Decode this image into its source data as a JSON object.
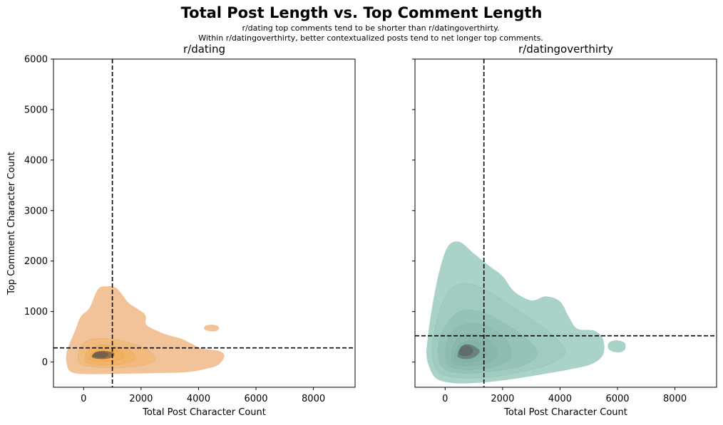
{
  "title": "Total Post Length vs. Top Comment Length",
  "subtitle_line1": "r/dating top comments tend to be shorter than r/datingoverthirty.",
  "subtitle_line2": "Within r/datingoverthirty, better contextualized posts tend to net longer top comments.",
  "colors": {
    "dating_light": "#f2c398",
    "dating_mid": "#f3a94a",
    "dating_dark": "#6b5a4a",
    "dot_light": "#a9d2c9",
    "dot_mid": "#7fb0a6",
    "dot_dark": "#5c6460",
    "reference_line": "#000000"
  },
  "chart_data": [
    {
      "type": "kde-contour",
      "title": "r/dating",
      "xlabel": "Total Post Character Count",
      "ylabel": "Top Comment Character Count",
      "xlim": [
        -1050,
        9450
      ],
      "ylim": [
        -500,
        6000
      ],
      "xticks": [
        0,
        2000,
        4000,
        6000,
        8000
      ],
      "yticks": [
        0,
        1000,
        2000,
        3000,
        4000,
        5000,
        6000
      ],
      "color": "#f2c398",
      "vline_x": 1000,
      "hline_y": 280,
      "density_peak": [
        500,
        150
      ],
      "outer_contour": [
        [
          -600,
          0
        ],
        [
          -500,
          -170
        ],
        [
          -200,
          -230
        ],
        [
          500,
          -240
        ],
        [
          1500,
          -230
        ],
        [
          2500,
          -220
        ],
        [
          3600,
          -200
        ],
        [
          4300,
          -130
        ],
        [
          4700,
          -50
        ],
        [
          4900,
          120
        ],
        [
          4700,
          220
        ],
        [
          4100,
          270
        ],
        [
          3800,
          350
        ],
        [
          3400,
          460
        ],
        [
          2800,
          560
        ],
        [
          2200,
          730
        ],
        [
          2150,
          930
        ],
        [
          1800,
          1080
        ],
        [
          1550,
          1180
        ],
        [
          1150,
          1460
        ],
        [
          800,
          1500
        ],
        [
          500,
          1440
        ],
        [
          200,
          1070
        ],
        [
          -100,
          900
        ],
        [
          -300,
          620
        ],
        [
          -500,
          350
        ],
        [
          -600,
          150
        ]
      ],
      "inner_contours": [
        [
          [
            -100,
            -40
          ],
          [
            500,
            -110
          ],
          [
            1300,
            -110
          ],
          [
            2100,
            -60
          ],
          [
            2500,
            60
          ],
          [
            2200,
            250
          ],
          [
            1500,
            400
          ],
          [
            800,
            460
          ],
          [
            200,
            440
          ],
          [
            -100,
            300
          ],
          [
            -200,
            100
          ]
        ],
        [
          [
            100,
            0
          ],
          [
            600,
            -60
          ],
          [
            1300,
            -40
          ],
          [
            1800,
            60
          ],
          [
            1600,
            230
          ],
          [
            1000,
            320
          ],
          [
            500,
            330
          ],
          [
            150,
            220
          ],
          [
            50,
            100
          ]
        ],
        [
          [
            250,
            40
          ],
          [
            700,
            10
          ],
          [
            1200,
            40
          ],
          [
            1400,
            140
          ],
          [
            1100,
            240
          ],
          [
            600,
            260
          ],
          [
            300,
            190
          ],
          [
            200,
            110
          ]
        ],
        [
          [
            300,
            90
          ],
          [
            700,
            60
          ],
          [
            1000,
            100
          ],
          [
            1050,
            180
          ],
          [
            700,
            220
          ],
          [
            400,
            190
          ]
        ],
        [
          [
            330,
            110
          ],
          [
            650,
            80
          ],
          [
            850,
            130
          ],
          [
            800,
            190
          ],
          [
            500,
            200
          ],
          [
            350,
            160
          ]
        ]
      ],
      "island_contour": [
        [
          4200,
          650
        ],
        [
          4400,
          610
        ],
        [
          4650,
          620
        ],
        [
          4700,
          700
        ],
        [
          4500,
          740
        ],
        [
          4250,
          720
        ]
      ]
    },
    {
      "type": "kde-contour",
      "title": "r/datingoverthirty",
      "xlabel": "Total Post Character Count",
      "ylabel": "",
      "xlim": [
        -1050,
        9450
      ],
      "ylim": [
        -500,
        6000
      ],
      "xticks": [
        0,
        2000,
        4000,
        6000,
        8000
      ],
      "yticks": [
        0,
        1000,
        2000,
        3000,
        4000,
        5000,
        6000
      ],
      "color": "#a9d2c9",
      "vline_x": 1350,
      "hline_y": 520,
      "density_peak": [
        700,
        250
      ],
      "outer_contour": [
        [
          -550,
          -100
        ],
        [
          -300,
          -330
        ],
        [
          300,
          -420
        ],
        [
          1200,
          -410
        ],
        [
          2200,
          -350
        ],
        [
          3200,
          -260
        ],
        [
          4300,
          -150
        ],
        [
          5100,
          -40
        ],
        [
          5500,
          150
        ],
        [
          5500,
          450
        ],
        [
          5200,
          620
        ],
        [
          4600,
          660
        ],
        [
          4300,
          900
        ],
        [
          4000,
          1200
        ],
        [
          3500,
          1300
        ],
        [
          3000,
          1220
        ],
        [
          2400,
          1400
        ],
        [
          2000,
          1700
        ],
        [
          1500,
          1920
        ],
        [
          1000,
          2150
        ],
        [
          500,
          2380
        ],
        [
          100,
          2290
        ],
        [
          -200,
          1800
        ],
        [
          -450,
          1100
        ],
        [
          -600,
          500
        ],
        [
          -650,
          150
        ]
      ],
      "inner_contours": [
        [
          [
            -300,
            -150
          ],
          [
            300,
            -300
          ],
          [
            1500,
            -300
          ],
          [
            2600,
            -200
          ],
          [
            3600,
            -50
          ],
          [
            4200,
            200
          ],
          [
            3700,
            550
          ],
          [
            3000,
            850
          ],
          [
            2300,
            1100
          ],
          [
            1500,
            1400
          ],
          [
            800,
            1550
          ],
          [
            200,
            1450
          ],
          [
            -200,
            1000
          ],
          [
            -450,
            300
          ]
        ],
        [
          [
            -100,
            -100
          ],
          [
            600,
            -220
          ],
          [
            1700,
            -180
          ],
          [
            2800,
            -50
          ],
          [
            3200,
            200
          ],
          [
            2700,
            520
          ],
          [
            1900,
            820
          ],
          [
            1200,
            1000
          ],
          [
            500,
            1000
          ],
          [
            0,
            700
          ],
          [
            -250,
            300
          ]
        ],
        [
          [
            100,
            -50
          ],
          [
            700,
            -150
          ],
          [
            1600,
            -100
          ],
          [
            2300,
            100
          ],
          [
            2100,
            450
          ],
          [
            1500,
            700
          ],
          [
            900,
            760
          ],
          [
            350,
            650
          ],
          [
            50,
            350
          ]
        ],
        [
          [
            250,
            0
          ],
          [
            750,
            -80
          ],
          [
            1400,
            -30
          ],
          [
            1800,
            150
          ],
          [
            1600,
            400
          ],
          [
            1100,
            540
          ],
          [
            600,
            520
          ],
          [
            300,
            330
          ]
        ],
        [
          [
            350,
            50
          ],
          [
            750,
            0
          ],
          [
            1200,
            40
          ],
          [
            1450,
            200
          ],
          [
            1200,
            380
          ],
          [
            800,
            420
          ],
          [
            450,
            300
          ]
        ],
        [
          [
            450,
            100
          ],
          [
            750,
            60
          ],
          [
            1050,
            110
          ],
          [
            1200,
            220
          ],
          [
            950,
            330
          ],
          [
            650,
            340
          ],
          [
            480,
            230
          ]
        ],
        [
          [
            500,
            150
          ],
          [
            750,
            120
          ],
          [
            950,
            180
          ],
          [
            950,
            270
          ],
          [
            750,
            330
          ],
          [
            550,
            290
          ]
        ]
      ],
      "island_contour": [
        [
          5700,
          250
        ],
        [
          6000,
          190
        ],
        [
          6250,
          240
        ],
        [
          6250,
          380
        ],
        [
          5950,
          430
        ],
        [
          5700,
          380
        ]
      ]
    }
  ]
}
